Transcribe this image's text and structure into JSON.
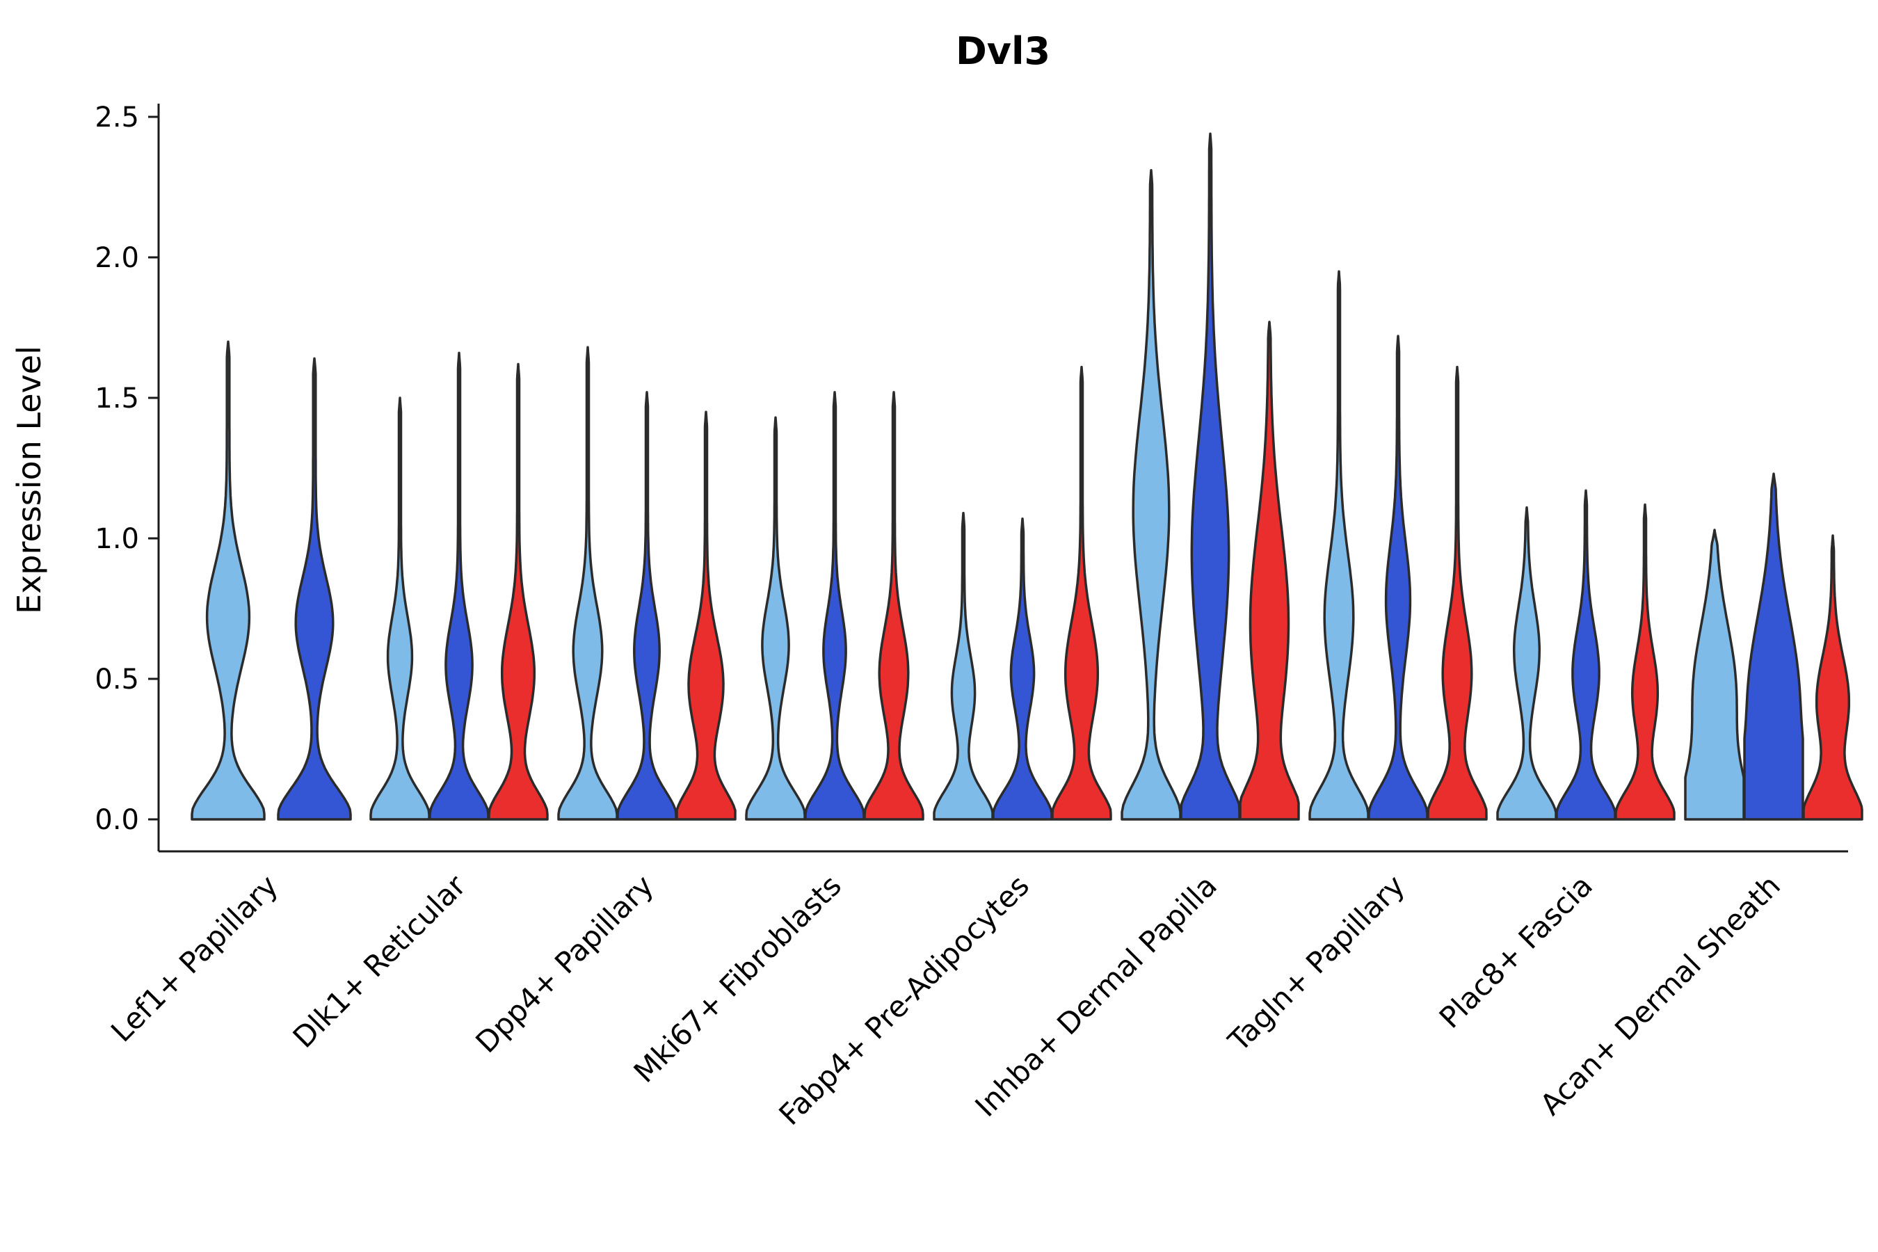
{
  "chart_data": {
    "type": "violin",
    "title": "Dvl3",
    "ylabel": "Expression Level",
    "xlabel": "",
    "ylim": [
      0,
      2.5
    ],
    "yticks": [
      0.0,
      0.5,
      1.0,
      1.5,
      2.0,
      2.5
    ],
    "legend": "none",
    "grid": false,
    "series_colors": {
      "lightblue": "#7FBBE8",
      "blue": "#3556D4",
      "red": "#EA2D2D"
    },
    "outline_color": "#2b2b2b",
    "axis_color": "#1a1a1a",
    "groups": [
      {
        "label": "Lef1+ Papillary",
        "violins": [
          {
            "color": "lightblue",
            "max": 1.7,
            "by": 0.72,
            "bw": 0.55,
            "bs": 0.18,
            "zs": 0.11
          },
          {
            "color": "blue",
            "max": 1.64,
            "by": 0.7,
            "bw": 0.48,
            "bs": 0.16,
            "zs": 0.11
          }
        ]
      },
      {
        "label": "Dlk1+ Reticular",
        "violins": [
          {
            "color": "lightblue",
            "max": 1.5,
            "by": 0.58,
            "bw": 0.38,
            "bs": 0.14,
            "zs": 0.1
          },
          {
            "color": "blue",
            "max": 1.66,
            "by": 0.55,
            "bw": 0.42,
            "bs": 0.15,
            "zs": 0.1
          },
          {
            "color": "red",
            "max": 1.62,
            "by": 0.52,
            "bw": 0.52,
            "bs": 0.17,
            "zs": 0.1
          }
        ]
      },
      {
        "label": "Dpp4+ Papillary",
        "violins": [
          {
            "color": "lightblue",
            "max": 1.68,
            "by": 0.6,
            "bw": 0.46,
            "bs": 0.16,
            "zs": 0.1
          },
          {
            "color": "blue",
            "max": 1.52,
            "by": 0.6,
            "bw": 0.4,
            "bs": 0.15,
            "zs": 0.1
          },
          {
            "color": "red",
            "max": 1.45,
            "by": 0.48,
            "bw": 0.56,
            "bs": 0.17,
            "zs": 0.1
          }
        ]
      },
      {
        "label": "Mki67+ Fibroblasts",
        "violins": [
          {
            "color": "lightblue",
            "max": 1.43,
            "by": 0.62,
            "bw": 0.42,
            "bs": 0.15,
            "zs": 0.1
          },
          {
            "color": "blue",
            "max": 1.52,
            "by": 0.6,
            "bw": 0.35,
            "bs": 0.14,
            "zs": 0.1
          },
          {
            "color": "red",
            "max": 1.52,
            "by": 0.52,
            "bw": 0.46,
            "bs": 0.16,
            "zs": 0.1
          }
        ]
      },
      {
        "label": "Fabp4+ Pre-Adipocytes",
        "violins": [
          {
            "color": "lightblue",
            "max": 1.09,
            "by": 0.45,
            "bw": 0.36,
            "bs": 0.13,
            "zs": 0.1
          },
          {
            "color": "blue",
            "max": 1.07,
            "by": 0.52,
            "bw": 0.36,
            "bs": 0.13,
            "zs": 0.1
          },
          {
            "color": "red",
            "max": 1.61,
            "by": 0.52,
            "bw": 0.52,
            "bs": 0.18,
            "zs": 0.1
          }
        ]
      },
      {
        "label": "Inhba+ Dermal Papilla",
        "violins": [
          {
            "color": "lightblue",
            "max": 2.31,
            "by": 1.1,
            "bw": 0.58,
            "bs": 0.34,
            "zs": 0.12
          },
          {
            "color": "blue",
            "max": 2.44,
            "by": 0.95,
            "bw": 0.6,
            "bs": 0.4,
            "zs": 0.12
          },
          {
            "color": "red",
            "max": 1.77,
            "by": 0.7,
            "bw": 0.62,
            "bs": 0.34,
            "zs": 0.12
          }
        ]
      },
      {
        "label": "Tagln+ Papillary",
        "violins": [
          {
            "color": "lightblue",
            "max": 1.95,
            "by": 0.72,
            "bw": 0.46,
            "bs": 0.22,
            "zs": 0.11
          },
          {
            "color": "blue",
            "max": 1.72,
            "by": 0.78,
            "bw": 0.38,
            "bs": 0.2,
            "zs": 0.11
          },
          {
            "color": "red",
            "max": 1.61,
            "by": 0.52,
            "bw": 0.46,
            "bs": 0.18,
            "zs": 0.11
          }
        ]
      },
      {
        "label": "Plac8+ Fascia",
        "violins": [
          {
            "color": "lightblue",
            "max": 1.11,
            "by": 0.6,
            "bw": 0.4,
            "bs": 0.16,
            "zs": 0.1
          },
          {
            "color": "blue",
            "max": 1.17,
            "by": 0.52,
            "bw": 0.42,
            "bs": 0.16,
            "zs": 0.1
          },
          {
            "color": "red",
            "max": 1.12,
            "by": 0.45,
            "bw": 0.4,
            "bs": 0.15,
            "zs": 0.1
          }
        ]
      },
      {
        "label": "Acan+ Dermal Sheath",
        "violins": [
          {
            "color": "lightblue",
            "max": 1.03,
            "by": 0.45,
            "bw": 0.7,
            "bs": 0.24,
            "zs": 0.16
          },
          {
            "color": "blue",
            "max": 1.23,
            "by": 0.42,
            "bw": 0.85,
            "bs": 0.3,
            "zs": 0.16
          },
          {
            "color": "red",
            "max": 1.01,
            "by": 0.42,
            "bw": 0.52,
            "bs": 0.16,
            "zs": 0.11
          }
        ]
      }
    ]
  }
}
